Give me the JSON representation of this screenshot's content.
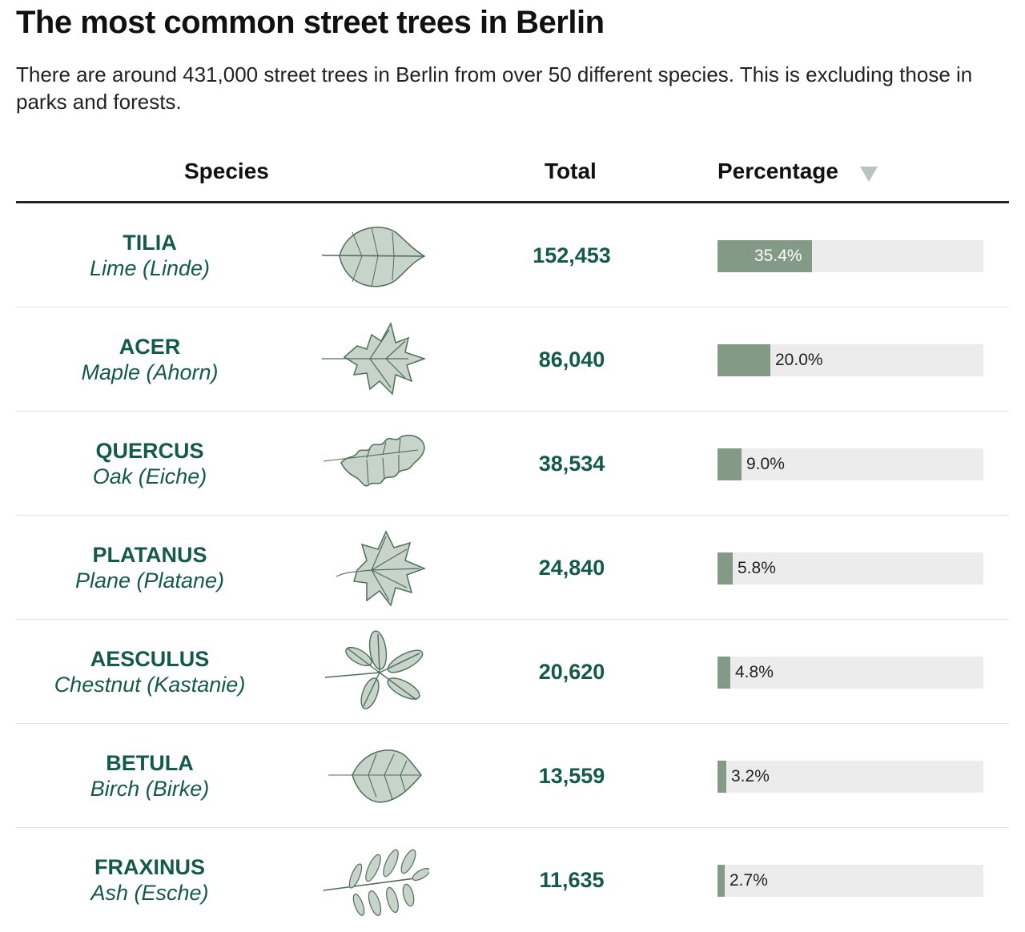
{
  "title": "The most common street trees in Berlin",
  "subtitle": "There are around 431,000 street trees in Berlin from over 50 different species. This is excluding those in parks and forests.",
  "columns": {
    "species": "Species",
    "total": "Total",
    "percentage": "Percentage"
  },
  "colors": {
    "text_accent": "#145a4a",
    "bar_fill": "#839a86",
    "bar_track": "#ececec",
    "sort_arrow": "#b9c5bc",
    "leaf_fill": "#c8d3c9",
    "leaf_stroke": "#4e6e5a"
  },
  "rows": [
    {
      "genus": "TILIA",
      "common": "Lime (Linde)",
      "total": "152,453",
      "pct_label": "35.4%",
      "icon": "linden-leaf-icon"
    },
    {
      "genus": "ACER",
      "common": "Maple (Ahorn)",
      "total": "86,040",
      "pct_label": "20.0%",
      "icon": "maple-leaf-icon"
    },
    {
      "genus": "QUERCUS",
      "common": "Oak (Eiche)",
      "total": "38,534",
      "pct_label": "9.0%",
      "icon": "oak-leaf-icon"
    },
    {
      "genus": "PLATANUS",
      "common": "Plane (Platane)",
      "total": "24,840",
      "pct_label": "5.8%",
      "icon": "plane-leaf-icon"
    },
    {
      "genus": "AESCULUS",
      "common": "Chestnut (Kastanie)",
      "total": "20,620",
      "pct_label": "4.8%",
      "icon": "chestnut-leaf-icon"
    },
    {
      "genus": "BETULA",
      "common": "Birch (Birke)",
      "total": "13,559",
      "pct_label": "3.2%",
      "icon": "birch-leaf-icon"
    },
    {
      "genus": "FRAXINUS",
      "common": "Ash (Esche)",
      "total": "11,635",
      "pct_label": "2.7%",
      "icon": "ash-leaf-icon"
    }
  ],
  "chart_data": {
    "type": "table",
    "title": "The most common street trees in Berlin",
    "columns": [
      "Species",
      "Total",
      "Percentage"
    ],
    "sort": {
      "column": "Percentage",
      "direction": "descending"
    },
    "categories": [
      "TILIA",
      "ACER",
      "QUERCUS",
      "PLATANUS",
      "AESCULUS",
      "BETULA",
      "FRAXINUS"
    ],
    "totals": [
      152453,
      86040,
      38534,
      24840,
      20620,
      13559,
      11635
    ],
    "percentages": [
      35.4,
      20.0,
      9.0,
      5.8,
      4.8,
      3.2,
      2.7
    ],
    "bar_scale_max": 100
  }
}
